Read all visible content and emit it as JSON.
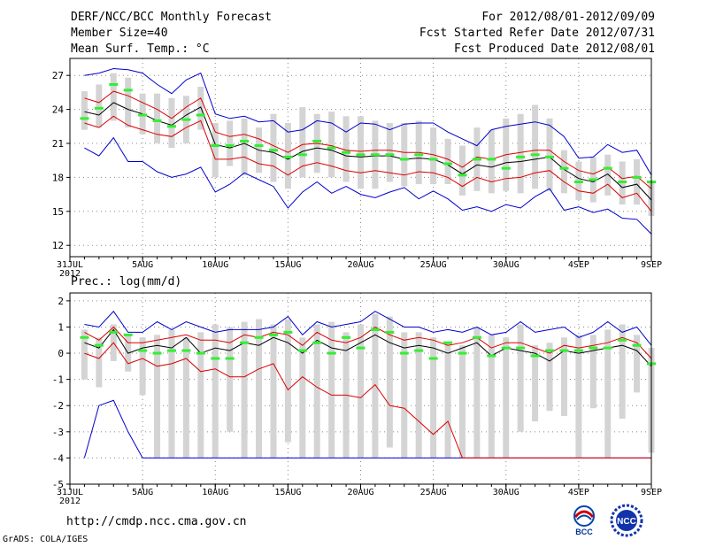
{
  "header": {
    "title": "DERF/NCC/BCC Monthly Forecast",
    "member_size": "Member Size=40",
    "variable_top": "Mean Surf. Temp.: °C",
    "period": "For 2012/08/01-2012/09/09",
    "started": "Fcst Started Refer Date 2012/07/31",
    "produced": "Fcst Produced Date 2012/08/01"
  },
  "bottom_label": "Prec.: log(mm/d)",
  "footer": {
    "url": "http://cmdp.ncc.cma.gov.cn",
    "grads": "GrADS: COLA/IGES",
    "logo_left_text": "BCC",
    "logo_right_text": "NCC"
  },
  "colors": {
    "box": "#d4d4d4",
    "median": "#000000",
    "inner": "#dd0000",
    "outer": "#0000cc",
    "obs": "#33ee33"
  },
  "chart_data": [
    {
      "type": "box-spread",
      "title": "Mean Surf. Temp.: °C",
      "xlim": [
        0,
        40
      ],
      "ylim": [
        11,
        28.5
      ],
      "yticks": [
        12,
        15,
        18,
        21,
        24,
        27
      ],
      "xticks": [
        {
          "x": 0,
          "label": "31JUL",
          "sub": "2012"
        },
        {
          "x": 5,
          "label": "5AUG"
        },
        {
          "x": 10,
          "label": "10AUG"
        },
        {
          "x": 15,
          "label": "15AUG"
        },
        {
          "x": 20,
          "label": "20AUG"
        },
        {
          "x": 25,
          "label": "25AUG"
        },
        {
          "x": 30,
          "label": "30AUG"
        },
        {
          "x": 35,
          "label": "4SEP"
        },
        {
          "x": 40,
          "label": "9SEP"
        }
      ],
      "x": [
        1,
        2,
        3,
        4,
        5,
        6,
        7,
        8,
        9,
        10,
        11,
        12,
        13,
        14,
        15,
        16,
        17,
        18,
        19,
        20,
        21,
        22,
        23,
        24,
        25,
        26,
        27,
        28,
        29,
        30,
        31,
        32,
        33,
        34,
        35,
        36,
        37,
        38,
        39,
        40
      ],
      "box_low": [
        22.2,
        22.4,
        23.0,
        22.4,
        21.8,
        21.0,
        20.6,
        21.0,
        22.2,
        18.0,
        19.0,
        18.2,
        18.4,
        17.6,
        17.0,
        18.0,
        18.4,
        18.0,
        17.6,
        17.0,
        17.0,
        17.6,
        17.2,
        17.4,
        17.4,
        17.4,
        16.4,
        16.8,
        16.6,
        16.8,
        16.6,
        17.0,
        16.8,
        16.6,
        16.0,
        15.8,
        16.4,
        15.6,
        15.6,
        14.6
      ],
      "box_high": [
        25.6,
        26.2,
        27.2,
        26.8,
        25.4,
        25.4,
        25.0,
        25.2,
        26.0,
        22.8,
        23.0,
        23.2,
        22.4,
        23.6,
        22.8,
        24.2,
        23.6,
        23.8,
        23.4,
        23.4,
        23.0,
        22.8,
        22.8,
        23.0,
        22.4,
        21.4,
        20.8,
        22.4,
        22.2,
        23.2,
        23.6,
        24.4,
        23.2,
        20.4,
        19.4,
        19.8,
        20.0,
        19.4,
        19.6,
        17.6
      ],
      "median": [
        23.8,
        23.5,
        24.6,
        24.0,
        23.6,
        23.0,
        22.6,
        23.5,
        24.2,
        20.9,
        20.6,
        21.0,
        20.4,
        20.2,
        19.6,
        20.3,
        20.6,
        20.4,
        19.9,
        19.8,
        19.9,
        19.9,
        19.6,
        19.7,
        19.6,
        19.1,
        18.3,
        19.1,
        18.9,
        19.3,
        19.4,
        19.6,
        19.8,
        18.7,
        17.9,
        17.6,
        18.3,
        17.1,
        17.4,
        16.0
      ],
      "inner_upper": [
        25.0,
        24.6,
        25.6,
        25.2,
        24.6,
        24.0,
        23.2,
        24.2,
        25.0,
        22.0,
        21.6,
        21.8,
        21.4,
        20.8,
        20.2,
        20.9,
        21.0,
        20.8,
        20.4,
        20.3,
        20.4,
        20.4,
        20.2,
        20.2,
        20.0,
        19.6,
        18.9,
        19.8,
        19.6,
        20.0,
        20.2,
        20.4,
        20.4,
        19.4,
        18.6,
        18.3,
        18.9,
        17.9,
        18.1,
        17.0
      ],
      "inner_lower": [
        22.8,
        22.4,
        23.4,
        22.6,
        22.2,
        21.8,
        21.6,
        22.4,
        23.0,
        19.6,
        19.6,
        19.8,
        19.2,
        19.0,
        18.2,
        19.0,
        19.3,
        19.0,
        18.6,
        18.4,
        18.6,
        18.4,
        18.2,
        18.5,
        18.4,
        18.0,
        17.2,
        18.0,
        17.6,
        17.9,
        18.0,
        18.4,
        18.6,
        17.6,
        16.8,
        16.6,
        17.4,
        16.2,
        16.6,
        15.0
      ],
      "outer_upper": [
        27.0,
        27.2,
        27.6,
        27.5,
        27.2,
        26.2,
        25.4,
        26.6,
        27.2,
        23.6,
        23.2,
        23.4,
        22.9,
        23.0,
        22.0,
        22.2,
        23.0,
        22.8,
        22.0,
        22.8,
        22.7,
        22.2,
        22.7,
        22.8,
        22.8,
        22.0,
        21.4,
        20.8,
        22.2,
        22.5,
        22.7,
        22.9,
        22.6,
        21.6,
        19.7,
        19.8,
        20.9,
        20.2,
        20.4,
        18.2
      ],
      "outer_lower": [
        20.6,
        19.9,
        21.5,
        19.4,
        19.4,
        18.5,
        18.0,
        18.3,
        18.9,
        16.7,
        17.4,
        18.4,
        17.8,
        17.2,
        15.3,
        16.7,
        17.6,
        16.6,
        17.2,
        16.5,
        16.2,
        16.7,
        17.1,
        16.1,
        16.8,
        16.1,
        15.1,
        15.4,
        15.0,
        15.6,
        15.3,
        16.3,
        17.0,
        15.1,
        15.4,
        14.9,
        15.2,
        14.4,
        14.3,
        13.0
      ],
      "obs": [
        23.2,
        24.1,
        26.2,
        25.7,
        23.5,
        23.0,
        22.5,
        23.1,
        23.5,
        20.8,
        20.8,
        21.2,
        20.8,
        20.4,
        19.8,
        20.0,
        21.2,
        20.6,
        20.2,
        20.0,
        20.0,
        20.0,
        19.6,
        20.0,
        19.6,
        19.2,
        18.2,
        19.6,
        19.6,
        18.8,
        19.8,
        20.0,
        19.8,
        18.8,
        17.6,
        17.8,
        18.8,
        17.6,
        18.0,
        17.6
      ]
    },
    {
      "type": "box-spread",
      "title": "Prec.: log(mm/d)",
      "xlim": [
        0,
        40
      ],
      "ylim": [
        -5,
        2.3
      ],
      "yticks": [
        -5,
        -4,
        -3,
        -2,
        -1,
        0,
        1,
        2
      ],
      "xticks": [
        {
          "x": 0,
          "label": "31JUL",
          "sub": "2012"
        },
        {
          "x": 5,
          "label": "5AUG"
        },
        {
          "x": 10,
          "label": "10AUG"
        },
        {
          "x": 15,
          "label": "15AUG"
        },
        {
          "x": 20,
          "label": "20AUG"
        },
        {
          "x": 25,
          "label": "25AUG"
        },
        {
          "x": 30,
          "label": "30AUG"
        },
        {
          "x": 35,
          "label": "4SEP"
        },
        {
          "x": 40,
          "label": "9SEP"
        }
      ],
      "x": [
        1,
        2,
        3,
        4,
        5,
        6,
        7,
        8,
        9,
        10,
        11,
        12,
        13,
        14,
        15,
        16,
        17,
        18,
        19,
        20,
        21,
        22,
        23,
        24,
        25,
        26,
        27,
        28,
        29,
        30,
        31,
        32,
        33,
        34,
        35,
        36,
        37,
        38,
        39,
        40
      ],
      "box_low": [
        -1.0,
        -1.3,
        -0.3,
        -0.7,
        -1.6,
        -4.0,
        -4.0,
        -4.0,
        -4.0,
        -4.0,
        -3.0,
        -4.0,
        -4.0,
        -4.0,
        -3.4,
        -4.0,
        -4.0,
        -4.0,
        -4.0,
        -4.0,
        -4.0,
        -3.6,
        -4.0,
        -4.0,
        -4.0,
        -4.0,
        -4.0,
        -4.0,
        -4.0,
        -4.0,
        -3.0,
        -2.6,
        -2.2,
        -2.4,
        -4.0,
        -2.1,
        -4.0,
        -2.5,
        -1.5,
        -3.8
      ],
      "box_high": [
        0.9,
        0.6,
        1.1,
        0.7,
        0.6,
        0.7,
        0.9,
        0.6,
        0.8,
        1.1,
        1.0,
        1.2,
        1.3,
        1.1,
        1.3,
        0.6,
        1.1,
        1.2,
        0.8,
        1.1,
        1.5,
        1.4,
        0.8,
        0.8,
        0.6,
        0.4,
        0.3,
        1.0,
        0.7,
        0.6,
        1.1,
        0.3,
        0.4,
        0.6,
        0.7,
        0.7,
        0.9,
        1.1,
        0.7,
        0.2
      ],
      "median": [
        0.4,
        0.2,
        0.9,
        0.0,
        0.2,
        0.3,
        0.2,
        0.6,
        0.0,
        0.2,
        0.1,
        0.4,
        0.3,
        0.6,
        0.4,
        0.0,
        0.5,
        0.2,
        0.1,
        0.4,
        0.7,
        0.4,
        0.2,
        0.3,
        0.2,
        0.0,
        0.2,
        0.4,
        -0.1,
        0.2,
        0.1,
        0.0,
        -0.3,
        0.1,
        0.0,
        0.1,
        0.2,
        0.3,
        0.1,
        -0.5
      ],
      "inner_upper": [
        0.8,
        0.5,
        1.0,
        0.4,
        0.4,
        0.5,
        0.6,
        0.7,
        0.5,
        0.5,
        0.4,
        0.7,
        0.6,
        0.8,
        0.7,
        0.3,
        0.8,
        0.5,
        0.4,
        0.6,
        1.0,
        0.7,
        0.5,
        0.6,
        0.5,
        0.3,
        0.4,
        0.6,
        0.2,
        0.4,
        0.4,
        0.2,
        0.0,
        0.3,
        0.2,
        0.3,
        0.4,
        0.6,
        0.4,
        -0.2
      ],
      "inner_lower": [
        0.0,
        -0.2,
        0.4,
        -0.4,
        -0.2,
        -0.5,
        -0.4,
        -0.2,
        -0.7,
        -0.6,
        -0.9,
        -0.9,
        -0.6,
        -0.4,
        -1.4,
        -0.9,
        -1.3,
        -1.6,
        -1.6,
        -1.7,
        -1.2,
        -2.0,
        -2.1,
        -2.6,
        -3.1,
        -2.6,
        -4.0,
        -4.0,
        -4.0,
        -4.0,
        -4.0,
        -4.0,
        -4.0,
        -4.0,
        -4.0,
        -4.0,
        -4.0,
        -4.0,
        -4.0,
        -4.0
      ],
      "outer_upper": [
        1.1,
        1.0,
        1.6,
        0.8,
        0.8,
        1.2,
        0.9,
        1.2,
        1.0,
        0.8,
        0.9,
        0.9,
        0.9,
        1.0,
        1.4,
        0.7,
        1.2,
        1.0,
        1.1,
        1.2,
        1.6,
        1.3,
        1.0,
        1.0,
        0.8,
        0.9,
        0.8,
        1.0,
        0.7,
        0.8,
        1.2,
        0.8,
        0.9,
        1.0,
        0.6,
        0.8,
        1.2,
        0.8,
        1.0,
        0.3
      ],
      "outer_lower": [
        -4.0,
        -2.0,
        -1.8,
        -3.0,
        -4.0,
        -4.0,
        -4.0,
        -4.0,
        -4.0,
        -4.0,
        -4.0,
        -4.0,
        -4.0,
        -4.0,
        -4.0,
        -4.0,
        -4.0,
        -4.0,
        -4.0,
        -4.0,
        -4.0,
        -4.0,
        -4.0,
        -4.0,
        -4.0,
        -4.0,
        -4.0,
        -4.0,
        -4.0,
        -4.0,
        -4.0,
        -4.0,
        -4.0,
        -4.0,
        -4.0,
        -4.0,
        -4.0,
        -4.0,
        -4.0,
        -4.0
      ],
      "obs": [
        0.6,
        0.3,
        0.8,
        0.7,
        0.1,
        0.0,
        0.1,
        0.1,
        0.0,
        -0.2,
        -0.2,
        0.4,
        0.6,
        0.7,
        0.8,
        0.1,
        0.4,
        0.0,
        0.6,
        0.2,
        0.9,
        0.8,
        0.0,
        0.1,
        -0.2,
        0.4,
        0.0,
        0.6,
        -0.1,
        0.2,
        0.2,
        -0.1,
        0.1,
        0.1,
        0.1,
        0.2,
        0.2,
        0.5,
        0.3,
        -0.4
      ]
    }
  ]
}
